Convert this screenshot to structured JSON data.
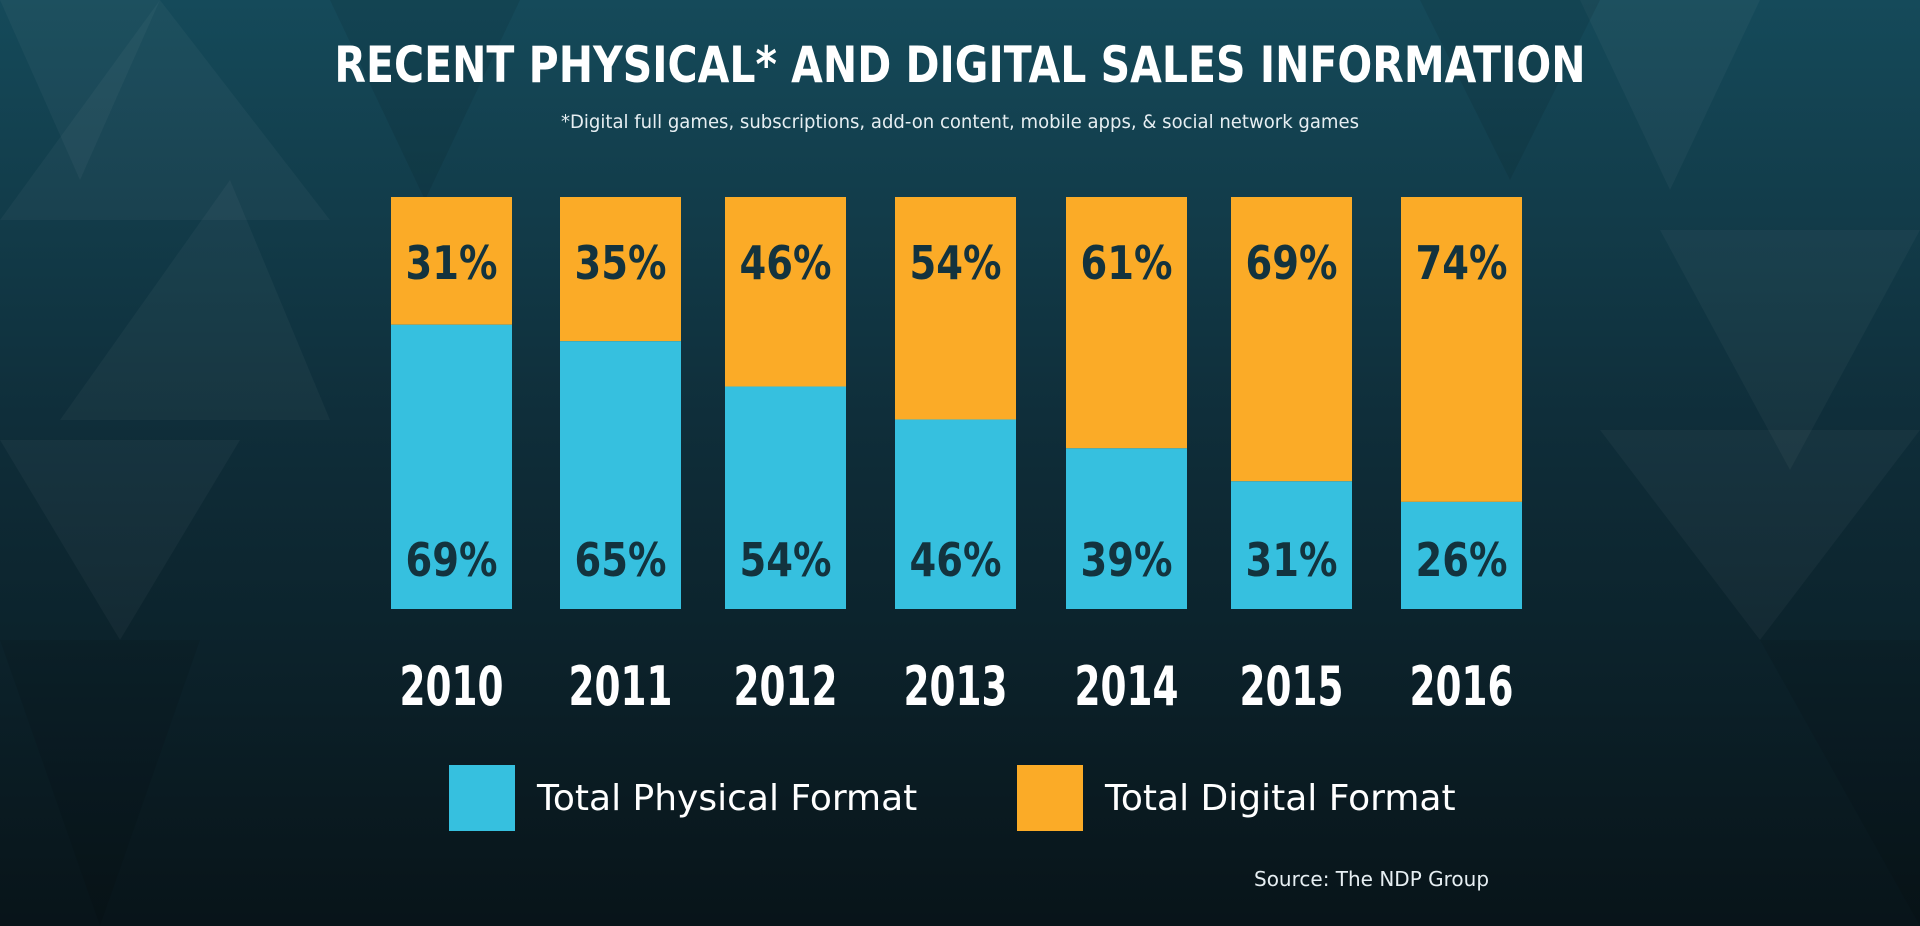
{
  "colors": {
    "physical": "#36c0df",
    "digital": "#fbab27",
    "bar_text": "#13333e",
    "year_text": "#ffffff"
  },
  "chart_data": {
    "type": "bar",
    "stacked": true,
    "percent": true,
    "title": "RECENT PHYSICAL* AND DIGITAL SALES INFORMATION",
    "subtitle": "*Digital full games, subscriptions, add-on content,  mobile apps, & social network games",
    "categories": [
      "2010",
      "2011",
      "2012",
      "2013",
      "2014",
      "2015",
      "2016"
    ],
    "series": [
      {
        "name": "Total Physical Format",
        "values": [
          69,
          65,
          54,
          46,
          39,
          31,
          26
        ]
      },
      {
        "name": "Total Digital Format",
        "values": [
          31,
          35,
          46,
          54,
          61,
          69,
          74
        ]
      }
    ],
    "value_labels": {
      "physical": [
        "69%",
        "65%",
        "54%",
        "46%",
        "39%",
        "31%",
        "26%"
      ],
      "digital": [
        "31%",
        "35%",
        "46%",
        "54%",
        "61%",
        "69%",
        "74%"
      ]
    },
    "ylim": [
      0,
      100
    ],
    "legend_position": "bottom",
    "source": "Source: The NDP Group"
  }
}
